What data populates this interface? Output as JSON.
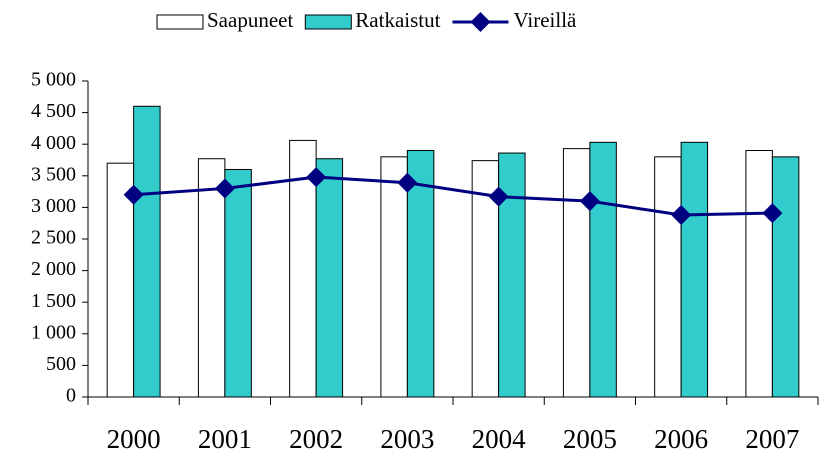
{
  "chart_data": {
    "type": "bar-line",
    "categories": [
      "2000",
      "2001",
      "2002",
      "2003",
      "2004",
      "2005",
      "2006",
      "2007"
    ],
    "series": [
      {
        "name": "Saapuneet",
        "type": "bar",
        "color": "#ffffff",
        "values": [
          3700,
          3770,
          4060,
          3800,
          3740,
          3930,
          3800,
          3900
        ]
      },
      {
        "name": "Ratkaistut",
        "type": "bar",
        "color": "#33cccc",
        "values": [
          4600,
          3600,
          3770,
          3900,
          3860,
          4030,
          4030,
          3800
        ]
      },
      {
        "name": "Vireillä",
        "type": "line",
        "color": "#000080",
        "values": [
          3200,
          3300,
          3480,
          3390,
          3170,
          3100,
          2880,
          2910
        ]
      }
    ],
    "ylim": [
      0,
      5000
    ],
    "yticks": [
      0,
      500,
      {
        "value": 1000,
        "label": "1 000"
      },
      {
        "value": 1500,
        "label": "1 500"
      },
      {
        "value": 2000,
        "label": "2 000"
      },
      {
        "value": 2500,
        "label": "2 500"
      },
      {
        "value": 3000,
        "label": "3 000"
      },
      {
        "value": 3500,
        "label": "3 500"
      },
      {
        "value": 4000,
        "label": "4 000"
      },
      {
        "value": 4500,
        "label": "4 500"
      },
      {
        "value": 5000,
        "label": "5 000"
      }
    ],
    "legend": "top"
  }
}
